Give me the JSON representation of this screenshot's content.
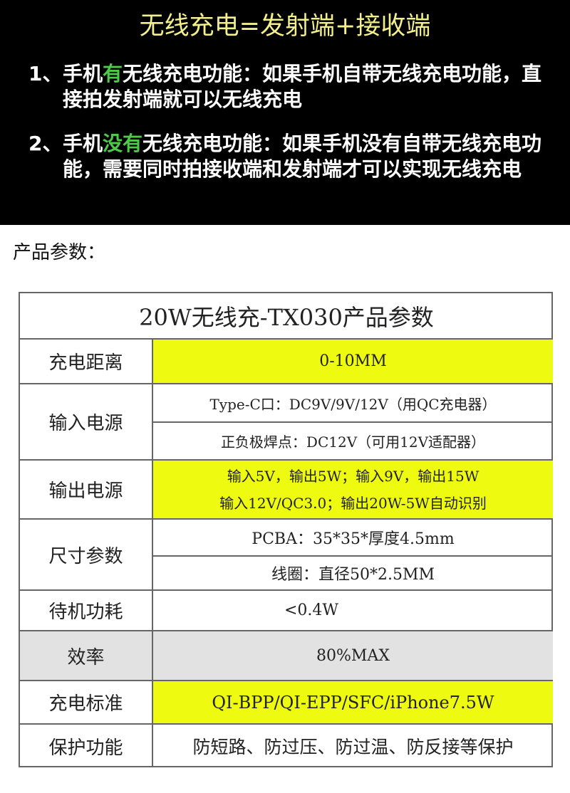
{
  "hero": {
    "title": "无线充电=发射端+接收端",
    "items": [
      {
        "num": "1、",
        "pre": "手机",
        "highlight": "有",
        "post": "无线充电功能：如果手机自带无线充电功能，直接拍发射端就可以无线充电"
      },
      {
        "num": "2、",
        "pre": "手机",
        "highlight": "没有",
        "post": "无线充电功能：如果手机没有自带无线充电功能，需要同时拍接收端和发射端才可以实现无线充电"
      }
    ],
    "colors": {
      "title": "#f2ef8c",
      "highlight": "#4fc94a",
      "background": "#000000"
    }
  },
  "params_label": "产品参数：",
  "table": {
    "title": "20W无线充-TX030产品参数",
    "rows": [
      {
        "label": "充电距离",
        "values": [
          "0-10MM"
        ]
      },
      {
        "label": "输入电源",
        "values": [
          "Type-C口：DC9V/9V/12V（用QC充电器）",
          "正负极焊点：DC12V（可用12V适配器）"
        ]
      },
      {
        "label": "输出电源",
        "values": [
          "输入5V，输出5W；输入9V，输出15W",
          "输入12V/QC3.0；输出20W-5W自动识别"
        ]
      },
      {
        "label": "尺寸参数",
        "values": [
          "PCBA：35*35*厚度4.5mm",
          "线圈：直径50*2.5MM"
        ]
      },
      {
        "label": "待机功耗",
        "values": [
          "<0.4W"
        ]
      },
      {
        "label": "效率",
        "values": [
          "80%MAX"
        ]
      },
      {
        "label": "充电标准",
        "values": [
          "QI-BPP/QI-EPP/SFC/iPhone7.5W"
        ]
      },
      {
        "label": "保护功能",
        "values": [
          "防短路、防过压、防过温、防反接等保护"
        ]
      }
    ],
    "colors": {
      "highlight": "#eefa10",
      "shaded": "#e2e2e2",
      "border": "#666666"
    }
  }
}
